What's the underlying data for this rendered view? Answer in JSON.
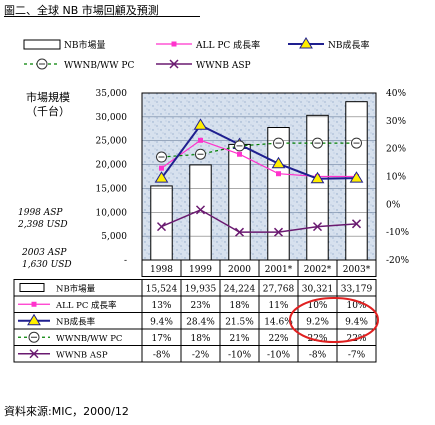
{
  "page": {
    "title": "圖二、全球 NB 市場回顧及預測",
    "source": "資料來源:MIC，2000/12"
  },
  "colors": {
    "nb_units": "#ffffff",
    "all_pc_growth": "#ff33cc",
    "nb_growth": "#1f1f8f",
    "nb_growth_marker": "#ffee00",
    "nb_share": "#008000",
    "nb_asp": "#6a1a70",
    "circle": "#e02020",
    "plot_bg": "#c6d4e6"
  },
  "chart_data": {
    "type": "bar",
    "categories": [
      "1998",
      "1999",
      "2000",
      "2001*",
      "2002*",
      "2003*"
    ],
    "left_axis": {
      "label_line1": "市場規模",
      "label_line2": "（千台）",
      "ticks": [
        "35,000",
        "30,000",
        "25,000",
        "20,000",
        "15,000",
        "10,000",
        "5,000",
        "-"
      ],
      "ylim": [
        0,
        35000
      ]
    },
    "right_axis": {
      "ticks": [
        "40%",
        "30%",
        "20%",
        "10%",
        "0%",
        "-10%",
        "-20%"
      ],
      "ylim": [
        -20,
        40
      ]
    },
    "series": [
      {
        "name": "NB市場量",
        "kind": "bar",
        "axis": "left",
        "values": [
          15524,
          19935,
          24224,
          27768,
          30321,
          33179
        ]
      },
      {
        "name": "ALL PC 成長率",
        "kind": "line",
        "axis": "right",
        "values": [
          13,
          23,
          18,
          11,
          10,
          10
        ]
      },
      {
        "name": "NB成長率",
        "kind": "line",
        "axis": "right",
        "values": [
          9.4,
          28.4,
          21.5,
          14.6,
          9.2,
          9.4
        ]
      },
      {
        "name": "WWNB/WW PC",
        "kind": "line",
        "axis": "right",
        "values": [
          17,
          18,
          21,
          22,
          22,
          22
        ]
      },
      {
        "name": "WWNB ASP",
        "kind": "line",
        "axis": "right",
        "values": [
          -8,
          -2,
          -10,
          -10,
          -8,
          -7
        ]
      }
    ],
    "table_rows": [
      {
        "label": "NB市場量",
        "cells": [
          "15,524",
          "19,935",
          "24,224",
          "27,768",
          "30,321",
          "33,179"
        ]
      },
      {
        "label": "ALL PC 成長率",
        "cells": [
          "13%",
          "23%",
          "18%",
          "11%",
          "10%",
          "10%"
        ]
      },
      {
        "label": "NB成長率",
        "cells": [
          "9.4%",
          "28.4%",
          "21.5%",
          "14.6%",
          "9.2%",
          "9.4%"
        ]
      },
      {
        "label": "WWNB/WW PC",
        "cells": [
          "17%",
          "18%",
          "21%",
          "22%",
          "22%",
          "22%"
        ]
      },
      {
        "label": "WWNB ASP",
        "cells": [
          "-8%",
          "-2%",
          "-10%",
          "-10%",
          "-8%",
          "-7%"
        ]
      }
    ],
    "legend": {
      "items": [
        "NB市場量",
        "ALL PC 成長率",
        "NB成長率",
        "WWNB/WW PC",
        "WWNB ASP"
      ],
      "placement": "top"
    },
    "annotations": [
      {
        "line1": "1998 ASP",
        "line2": "2,398 USD"
      },
      {
        "line1": "2003 ASP",
        "line2": "1,630 USD"
      }
    ],
    "highlight": {
      "description": "red ellipse",
      "row": "NB成長率",
      "categories": [
        "2002*",
        "2003*"
      ]
    },
    "grid": true
  }
}
